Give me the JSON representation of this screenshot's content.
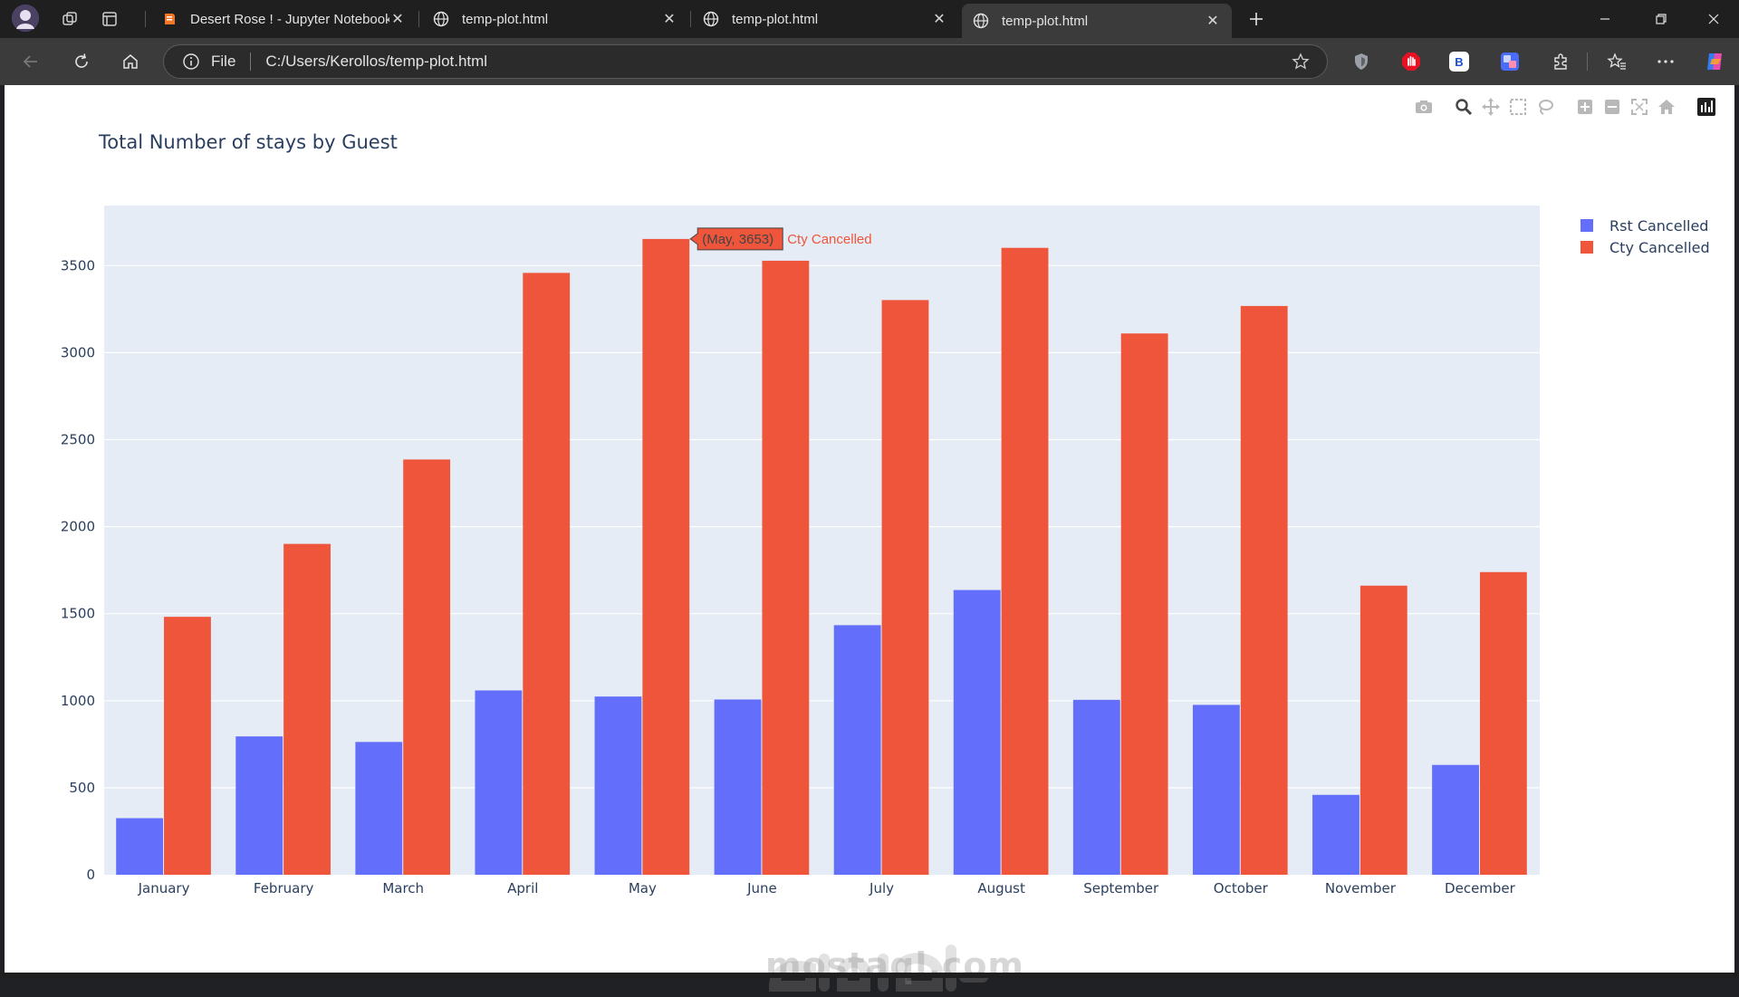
{
  "browser": {
    "tabs": [
      {
        "title": "Desert Rose ! - Jupyter Notebook",
        "icon": "jupyter-notebook-icon",
        "active": false
      },
      {
        "title": "temp-plot.html",
        "icon": "globe-icon",
        "active": false
      },
      {
        "title": "temp-plot.html",
        "icon": "globe-icon",
        "active": false
      },
      {
        "title": "temp-plot.html",
        "icon": "globe-icon",
        "active": true
      }
    ],
    "address": {
      "scheme_label": "File",
      "url": "C:/Users/Kerollos/temp-plot.html"
    },
    "extensions": [
      {
        "name": "shield-extension-icon",
        "label": "",
        "color": "#9aa0a6"
      },
      {
        "name": "adblock-extension-icon",
        "label": "",
        "color": "#e81123"
      },
      {
        "name": "b-extension-icon",
        "label": "B",
        "color": "#ffffff"
      },
      {
        "name": "translate-extension-icon",
        "label": "",
        "color": "#4a6cf7"
      }
    ]
  },
  "chart": {
    "title": "Total Number of stays by Guest",
    "legend": [
      {
        "label": "Rst Cancelled",
        "color": "#636efa"
      },
      {
        "label": "Cty Cancelled",
        "color": "#ef553b"
      }
    ],
    "tooltip": {
      "value_text": "(May, 3653)",
      "series_text": "Cty Cancelled"
    }
  },
  "chart_data": {
    "type": "bar",
    "title": "Total Number of stays by Guest",
    "xlabel": "",
    "ylabel": "",
    "categories": [
      "January",
      "February",
      "March",
      "April",
      "May",
      "June",
      "July",
      "August",
      "September",
      "October",
      "November",
      "December"
    ],
    "series": [
      {
        "name": "Rst Cancelled",
        "color": "#636efa",
        "values": [
          325,
          795,
          763,
          1059,
          1024,
          1007,
          1434,
          1636,
          1005,
          976,
          459,
          631
        ]
      },
      {
        "name": "Cty Cancelled",
        "color": "#ef553b",
        "values": [
          1482,
          1901,
          2386,
          3458,
          3653,
          3528,
          3302,
          3602,
          3110,
          3268,
          1661,
          1739
        ]
      }
    ],
    "yticks": [
      0,
      500,
      1000,
      1500,
      2000,
      2500,
      3000,
      3500
    ],
    "ylim": [
      0,
      3845
    ],
    "grid": true,
    "legend_position": "top-right",
    "plot_bgcolor": "#e5ecf6"
  },
  "watermark": {
    "text": "mostaql.com"
  }
}
